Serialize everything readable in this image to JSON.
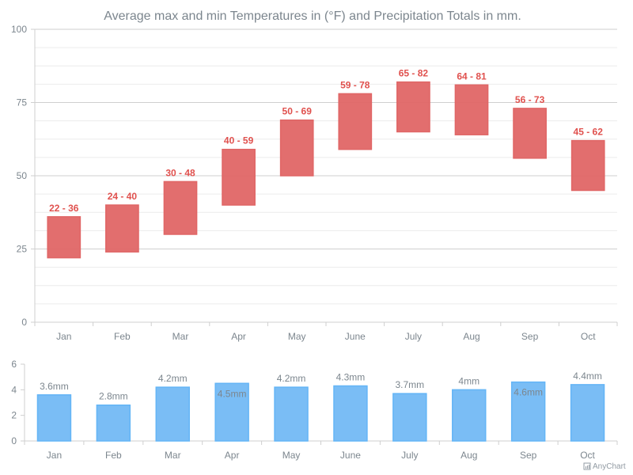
{
  "chart_data": [
    {
      "type": "range-column",
      "title": "Average max and min Temperatures in (°F) and Precipitation Totals in mm.",
      "categories": [
        "Jan",
        "Feb",
        "Mar",
        "Apr",
        "May",
        "June",
        "July",
        "Aug",
        "Sep",
        "Oct"
      ],
      "series": [
        {
          "name": "Temperature",
          "low": [
            22,
            24,
            30,
            40,
            50,
            59,
            65,
            64,
            56,
            45
          ],
          "high": [
            36,
            40,
            48,
            59,
            69,
            78,
            82,
            81,
            73,
            62
          ],
          "labels": [
            "22 - 36",
            "24 - 40",
            "30 - 48",
            "40 - 59",
            "50 - 69",
            "59 - 78",
            "65 - 82",
            "64 - 81",
            "56 - 73",
            "45 - 62"
          ]
        }
      ],
      "ylim": [
        0,
        100
      ],
      "yticks": [
        0,
        25,
        50,
        75,
        100
      ],
      "grid": true,
      "color": "#e06666"
    },
    {
      "type": "bar",
      "categories": [
        "Jan",
        "Feb",
        "Mar",
        "Apr",
        "May",
        "June",
        "July",
        "Aug",
        "Sep",
        "Oct"
      ],
      "series": [
        {
          "name": "Precipitation",
          "values": [
            3.6,
            2.8,
            4.2,
            4.5,
            4.2,
            4.3,
            3.7,
            4.0,
            4.6,
            4.4
          ],
          "labels": [
            "3.6mm",
            "2.8mm",
            "4.2mm",
            "4.5mm",
            "4.2mm",
            "4.3mm",
            "3.7mm",
            "4mm",
            "4.6mm",
            "4.4mm"
          ]
        }
      ],
      "ylim": [
        0,
        6
      ],
      "yticks": [
        0,
        2,
        4,
        6
      ],
      "grid": false,
      "color": "#7abdf5"
    }
  ],
  "credit": "AnyChart"
}
